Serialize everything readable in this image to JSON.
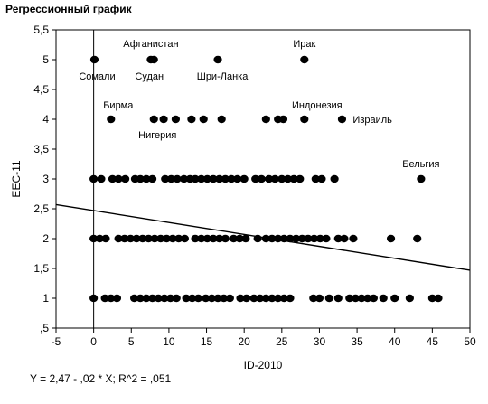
{
  "chart_data": {
    "type": "scatter",
    "title": "Регрессионный график",
    "xlabel": "ID-2010",
    "ylabel": "EEC-11",
    "xlim": [
      -5,
      50
    ],
    "ylim": [
      0.5,
      5.5
    ],
    "xticks": [
      -5,
      0,
      5,
      10,
      15,
      20,
      25,
      30,
      35,
      40,
      45,
      50
    ],
    "xtick_labels": [
      "-5",
      "0",
      "5",
      "10",
      "15",
      "20",
      "25",
      "30",
      "35",
      "40",
      "45",
      "50"
    ],
    "yticks": [
      0.5,
      1,
      1.5,
      2,
      2.5,
      3,
      3.5,
      4,
      4.5,
      5,
      5.5
    ],
    "ytick_labels": [
      ",5",
      "1",
      "1,5",
      "2",
      "2,5",
      "3",
      "3,5",
      "4",
      "4,5",
      "5",
      "5,5"
    ],
    "grid": false,
    "reference_line_x": 0,
    "regression": {
      "intercept": 2.47,
      "slope": -0.02
    },
    "equation": "Y = 2,47 - ,02 * X; R^2 = ,051",
    "points": [
      {
        "x": 0.1,
        "y": 5
      },
      {
        "x": 7.6,
        "y": 5
      },
      {
        "x": 8,
        "y": 5
      },
      {
        "x": 16.5,
        "y": 5
      },
      {
        "x": 28,
        "y": 5
      },
      {
        "x": 2.3,
        "y": 4
      },
      {
        "x": 8,
        "y": 4
      },
      {
        "x": 9.3,
        "y": 4
      },
      {
        "x": 10.9,
        "y": 4
      },
      {
        "x": 13,
        "y": 4
      },
      {
        "x": 14.6,
        "y": 4
      },
      {
        "x": 17,
        "y": 4
      },
      {
        "x": 22.9,
        "y": 4
      },
      {
        "x": 24.5,
        "y": 4
      },
      {
        "x": 25.2,
        "y": 4
      },
      {
        "x": 28,
        "y": 4
      },
      {
        "x": 33,
        "y": 4
      },
      {
        "x": 0,
        "y": 3
      },
      {
        "x": 1,
        "y": 3
      },
      {
        "x": 2.5,
        "y": 3
      },
      {
        "x": 3.3,
        "y": 3
      },
      {
        "x": 4.2,
        "y": 3
      },
      {
        "x": 5.5,
        "y": 3
      },
      {
        "x": 6.2,
        "y": 3
      },
      {
        "x": 7,
        "y": 3
      },
      {
        "x": 7.8,
        "y": 3
      },
      {
        "x": 9.5,
        "y": 3
      },
      {
        "x": 10.3,
        "y": 3
      },
      {
        "x": 11.1,
        "y": 3
      },
      {
        "x": 12,
        "y": 3
      },
      {
        "x": 12.8,
        "y": 3
      },
      {
        "x": 13.5,
        "y": 3
      },
      {
        "x": 14.3,
        "y": 3
      },
      {
        "x": 15.1,
        "y": 3
      },
      {
        "x": 15.9,
        "y": 3
      },
      {
        "x": 16.7,
        "y": 3
      },
      {
        "x": 17.5,
        "y": 3
      },
      {
        "x": 18.3,
        "y": 3
      },
      {
        "x": 19.1,
        "y": 3
      },
      {
        "x": 20,
        "y": 3
      },
      {
        "x": 21.5,
        "y": 3
      },
      {
        "x": 22.3,
        "y": 3
      },
      {
        "x": 23.3,
        "y": 3
      },
      {
        "x": 24.1,
        "y": 3
      },
      {
        "x": 25,
        "y": 3
      },
      {
        "x": 25.8,
        "y": 3
      },
      {
        "x": 26.6,
        "y": 3
      },
      {
        "x": 27.4,
        "y": 3
      },
      {
        "x": 29.5,
        "y": 3
      },
      {
        "x": 30.3,
        "y": 3
      },
      {
        "x": 32,
        "y": 3
      },
      {
        "x": 43.5,
        "y": 3
      },
      {
        "x": 0,
        "y": 2
      },
      {
        "x": 0.8,
        "y": 2
      },
      {
        "x": 1.6,
        "y": 2
      },
      {
        "x": 3.3,
        "y": 2
      },
      {
        "x": 4.1,
        "y": 2
      },
      {
        "x": 4.9,
        "y": 2
      },
      {
        "x": 5.7,
        "y": 2
      },
      {
        "x": 6.5,
        "y": 2
      },
      {
        "x": 7.3,
        "y": 2
      },
      {
        "x": 8.1,
        "y": 2
      },
      {
        "x": 8.9,
        "y": 2
      },
      {
        "x": 9.7,
        "y": 2
      },
      {
        "x": 10.5,
        "y": 2
      },
      {
        "x": 11.3,
        "y": 2
      },
      {
        "x": 12.1,
        "y": 2
      },
      {
        "x": 13.5,
        "y": 2
      },
      {
        "x": 14.3,
        "y": 2
      },
      {
        "x": 15.1,
        "y": 2
      },
      {
        "x": 15.9,
        "y": 2
      },
      {
        "x": 16.7,
        "y": 2
      },
      {
        "x": 17.5,
        "y": 2
      },
      {
        "x": 18.6,
        "y": 2
      },
      {
        "x": 19.4,
        "y": 2
      },
      {
        "x": 20.2,
        "y": 2
      },
      {
        "x": 21.8,
        "y": 2
      },
      {
        "x": 22.9,
        "y": 2
      },
      {
        "x": 23.7,
        "y": 2
      },
      {
        "x": 24.5,
        "y": 2
      },
      {
        "x": 25.3,
        "y": 2
      },
      {
        "x": 26.1,
        "y": 2
      },
      {
        "x": 26.9,
        "y": 2
      },
      {
        "x": 27.7,
        "y": 2
      },
      {
        "x": 28.5,
        "y": 2
      },
      {
        "x": 29.3,
        "y": 2
      },
      {
        "x": 30.1,
        "y": 2
      },
      {
        "x": 30.9,
        "y": 2
      },
      {
        "x": 32.5,
        "y": 2
      },
      {
        "x": 33.3,
        "y": 2
      },
      {
        "x": 34.5,
        "y": 2
      },
      {
        "x": 39.5,
        "y": 2
      },
      {
        "x": 43,
        "y": 2
      },
      {
        "x": 0,
        "y": 1
      },
      {
        "x": 1.5,
        "y": 1
      },
      {
        "x": 2.3,
        "y": 1
      },
      {
        "x": 3.1,
        "y": 1
      },
      {
        "x": 5.4,
        "y": 1
      },
      {
        "x": 6.2,
        "y": 1
      },
      {
        "x": 7,
        "y": 1
      },
      {
        "x": 7.8,
        "y": 1
      },
      {
        "x": 8.6,
        "y": 1
      },
      {
        "x": 9.4,
        "y": 1
      },
      {
        "x": 10.2,
        "y": 1
      },
      {
        "x": 11,
        "y": 1
      },
      {
        "x": 12.3,
        "y": 1
      },
      {
        "x": 13.1,
        "y": 1
      },
      {
        "x": 13.9,
        "y": 1
      },
      {
        "x": 14.9,
        "y": 1
      },
      {
        "x": 15.7,
        "y": 1
      },
      {
        "x": 16.5,
        "y": 1
      },
      {
        "x": 17.3,
        "y": 1
      },
      {
        "x": 18.1,
        "y": 1
      },
      {
        "x": 19.5,
        "y": 1
      },
      {
        "x": 20.3,
        "y": 1
      },
      {
        "x": 21.3,
        "y": 1
      },
      {
        "x": 22.1,
        "y": 1
      },
      {
        "x": 22.9,
        "y": 1
      },
      {
        "x": 23.7,
        "y": 1
      },
      {
        "x": 24.5,
        "y": 1
      },
      {
        "x": 25.3,
        "y": 1
      },
      {
        "x": 26.1,
        "y": 1
      },
      {
        "x": 29.2,
        "y": 1
      },
      {
        "x": 30,
        "y": 1
      },
      {
        "x": 31.3,
        "y": 1
      },
      {
        "x": 32.5,
        "y": 1
      },
      {
        "x": 34,
        "y": 1
      },
      {
        "x": 34.8,
        "y": 1
      },
      {
        "x": 35.6,
        "y": 1
      },
      {
        "x": 36.4,
        "y": 1
      },
      {
        "x": 37.2,
        "y": 1
      },
      {
        "x": 38.5,
        "y": 1
      },
      {
        "x": 40,
        "y": 1
      },
      {
        "x": 42,
        "y": 1
      },
      {
        "x": 45,
        "y": 1
      },
      {
        "x": 45.8,
        "y": 1
      }
    ],
    "annotations": [
      {
        "text": "Сомали",
        "x": 0.1,
        "y": 5
      },
      {
        "text": "Афганистан",
        "x": 7.6,
        "y": 5
      },
      {
        "text": "Судан",
        "x": 8,
        "y": 5
      },
      {
        "text": "Шри-Ланка",
        "x": 16.5,
        "y": 5
      },
      {
        "text": "Ирак",
        "x": 28,
        "y": 5
      },
      {
        "text": "Бирма",
        "x": 2.3,
        "y": 4
      },
      {
        "text": "Нигерия",
        "x": 8,
        "y": 4
      },
      {
        "text": "Индонезия",
        "x": 28,
        "y": 4
      },
      {
        "text": "Израиль",
        "x": 33,
        "y": 4
      },
      {
        "text": "Бельгия",
        "x": 43.5,
        "y": 3
      }
    ]
  }
}
